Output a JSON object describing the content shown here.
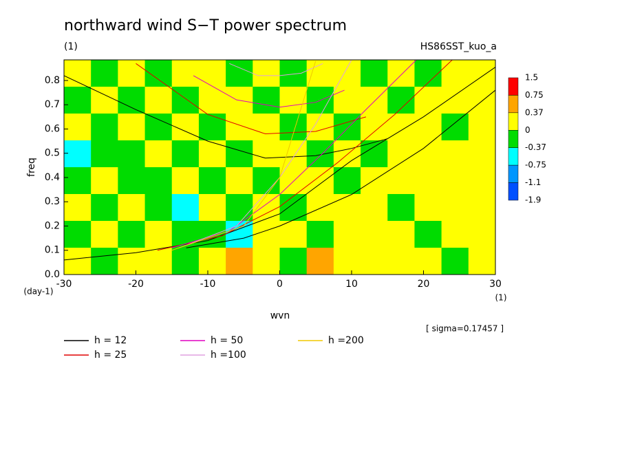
{
  "chart_data": {
    "type": "contour",
    "title": "northward wind S−T power spectrum",
    "subtitle": "(1)",
    "run_label": "HS86SST_kuo_a",
    "x_label": "wvn",
    "x_unit": "(1)",
    "y_label": "freq",
    "y_unit": "(day-1)",
    "note": "[ sigma=0.17457 ]",
    "xlim": [
      -30,
      30
    ],
    "ylim": [
      0,
      0.885
    ],
    "xticks": [
      -30,
      -20,
      -10,
      0,
      10,
      20,
      30
    ],
    "yticks": [
      {
        "value": 0,
        "label": "0.0"
      },
      0.1,
      0.2,
      0.3,
      0.4,
      0.5,
      0.6,
      0.7,
      0.8
    ],
    "z": [
      [
        0.2,
        -0.2,
        0.2,
        -0.2,
        0.2,
        0.2,
        -0.2,
        0.2,
        -0.2,
        0.2,
        0.2,
        -0.2,
        0.2,
        -0.2,
        0.2,
        0.2
      ],
      [
        -0.2,
        0.2,
        -0.2,
        0.2,
        -0.2,
        0.2,
        0.2,
        -0.2,
        0.2,
        -0.2,
        0.2,
        0.2,
        -0.2,
        0.2,
        0.2,
        0.2
      ],
      [
        0.2,
        -0.2,
        0.2,
        -0.2,
        0.2,
        -0.2,
        0.2,
        0.2,
        -0.2,
        0.2,
        -0.2,
        0.2,
        0.2,
        0.2,
        -0.2,
        0.2
      ],
      [
        -0.5,
        -0.2,
        -0.2,
        0.2,
        -0.2,
        0.2,
        -0.2,
        0.2,
        0.2,
        -0.2,
        0.2,
        -0.2,
        0.2,
        0.2,
        0.2,
        0.2
      ],
      [
        -0.2,
        0.2,
        -0.2,
        -0.2,
        0.2,
        -0.2,
        0.2,
        -0.2,
        0.2,
        0.2,
        -0.2,
        0.2,
        0.2,
        0.2,
        0.2,
        0.2
      ],
      [
        0.2,
        -0.2,
        0.2,
        -0.2,
        -0.5,
        0.2,
        -0.2,
        0.2,
        -0.2,
        0.2,
        0.2,
        0.2,
        -0.2,
        0.2,
        0.2,
        0.2
      ],
      [
        -0.2,
        0.2,
        -0.2,
        0.2,
        -0.2,
        -0.2,
        -0.5,
        0.2,
        0.2,
        -0.2,
        0.2,
        0.2,
        0.2,
        -0.2,
        0.2,
        0.2
      ],
      [
        0.2,
        -0.2,
        0.2,
        0.2,
        -0.2,
        0.2,
        0.5,
        0.2,
        -0.2,
        0.5,
        0.2,
        0.2,
        0.2,
        0.2,
        -0.2,
        0.2
      ]
    ],
    "colorbar": {
      "levels": [
        1.5,
        0.75,
        0.37,
        0,
        -0.37,
        -0.75,
        -1.1,
        -1.9
      ],
      "colors": [
        "#ff0000",
        "#ffa500",
        "#ffff00",
        "#00dc00",
        "#00ffff",
        "#0096ff",
        "#0050ff"
      ]
    },
    "series": [
      {
        "name": "h = 12",
        "color": "#000000",
        "curves": [
          {
            "x": [
              -30,
              -20,
              -10,
              0,
              10,
              20,
              30
            ],
            "y": [
              0.06,
              0.09,
              0.14,
              0.25,
              0.47,
              0.65,
              0.855
            ]
          },
          {
            "x": [
              -13,
              -5,
              0,
              10,
              20,
              30
            ],
            "y": [
              0.11,
              0.15,
              0.2,
              0.33,
              0.52,
              0.76
            ]
          },
          {
            "x": [
              -30,
              -20,
              -10,
              -2,
              5,
              10,
              15
            ],
            "y": [
              0.82,
              0.68,
              0.55,
              0.48,
              0.49,
              0.52,
              0.56
            ]
          }
        ]
      },
      {
        "name": "h = 25",
        "color": "#e00000",
        "curves": [
          {
            "x": [
              -17,
              -8,
              0,
              8,
              16,
              24
            ],
            "y": [
              0.1,
              0.16,
              0.28,
              0.46,
              0.66,
              0.885
            ]
          },
          {
            "x": [
              -20,
              -10,
              -2,
              5,
              12
            ],
            "y": [
              0.87,
              0.66,
              0.58,
              0.59,
              0.65
            ]
          }
        ]
      },
      {
        "name": "h = 50",
        "color": "#e000c0",
        "curves": [
          {
            "x": [
              -15,
              -7,
              0,
              6,
              12,
              19
            ],
            "y": [
              0.11,
              0.18,
              0.33,
              0.5,
              0.68,
              0.885
            ]
          },
          {
            "x": [
              -12,
              -6,
              0,
              5,
              9
            ],
            "y": [
              0.82,
              0.72,
              0.69,
              0.71,
              0.76
            ]
          }
        ]
      },
      {
        "name": "h =100",
        "color": "#e0a0e0",
        "curves": [
          {
            "x": [
              -14,
              -6,
              0,
              5,
              10
            ],
            "y": [
              0.11,
              0.2,
              0.4,
              0.62,
              0.885
            ]
          },
          {
            "x": [
              -7,
              -3,
              0,
              3,
              6
            ],
            "y": [
              0.87,
              0.82,
              0.82,
              0.83,
              0.87
            ]
          }
        ]
      },
      {
        "name": "h =200",
        "color": "#f0c800",
        "curves": [
          {
            "x": [
              -15,
              -5,
              0,
              5
            ],
            "y": [
              0.1,
              0.2,
              0.4,
              0.88
            ]
          }
        ]
      }
    ]
  }
}
